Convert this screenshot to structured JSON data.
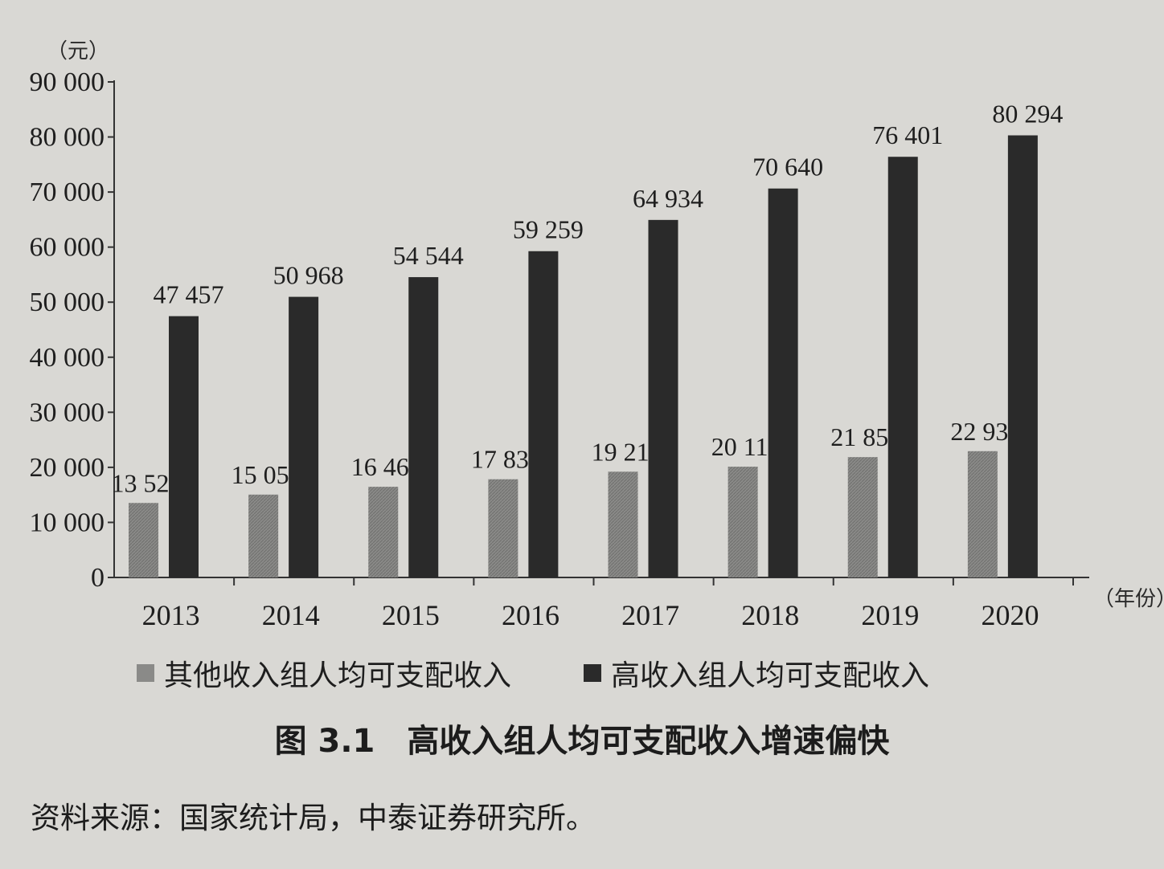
{
  "chart_data": {
    "type": "bar",
    "unit": "（元）",
    "x_unit": "（年份）",
    "categories": [
      "2013",
      "2014",
      "2015",
      "2016",
      "2017",
      "2018",
      "2019",
      "2020"
    ],
    "series": [
      {
        "name": "其他收入组人均可支配收入",
        "values": [
          13529,
          15051,
          16468,
          17836,
          19211,
          20115,
          21856,
          22933
        ],
        "labels": [
          "13 529",
          "15 051",
          "16 468",
          "17 836",
          "19 211",
          "20 115",
          "21 856",
          "22 933"
        ],
        "color": "#8a8a88"
      },
      {
        "name": "高收入组人均可支配收入",
        "values": [
          47457,
          50968,
          54544,
          59259,
          64934,
          70640,
          76401,
          80294
        ],
        "labels": [
          "47 457",
          "50 968",
          "54 544",
          "59 259",
          "64 934",
          "70 640",
          "76 401",
          "80 294"
        ],
        "color": "#2a2a2a"
      }
    ],
    "ylim": [
      0,
      90000
    ],
    "yticks": [
      0,
      10000,
      20000,
      30000,
      40000,
      50000,
      60000,
      70000,
      80000,
      90000
    ],
    "ytick_labels": [
      "0",
      "10 000",
      "20 000",
      "30 000",
      "40 000",
      "50 000",
      "60 000",
      "70 000",
      "80 000",
      "90 000"
    ],
    "grid": false,
    "legend_position": "bottom"
  },
  "caption": "图 3.1　高收入组人均可支配收入增速偏快",
  "source": "资料来源：国家统计局，中泰证券研究所。"
}
